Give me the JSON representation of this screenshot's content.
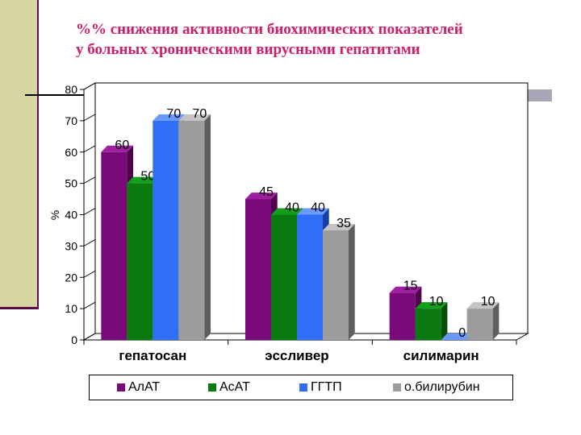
{
  "title_lines": [
    "%% снижения активности биохимических показателей",
    " у больных хроническими вирусными гепатитами"
  ],
  "chart_data": {
    "type": "bar",
    "categories": [
      "гепатосан",
      "эссливер",
      "силимарин"
    ],
    "series": [
      {
        "name": "АлАТ",
        "values": [
          60,
          45,
          15
        ],
        "color": "#7a0a7a",
        "side": "#4d044d",
        "top": "#a01ea0"
      },
      {
        "name": "АсАТ",
        "values": [
          50,
          40,
          10
        ],
        "color": "#087a0f",
        "side": "#044d07",
        "top": "#12a01c"
      },
      {
        "name": "ГГТП",
        "values": [
          70,
          40,
          0
        ],
        "color": "#2f6ff5",
        "side": "#1740a6",
        "top": "#6a9aff"
      },
      {
        "name": "о.билирубин",
        "values": [
          70,
          35,
          10
        ],
        "color": "#9c9c9c",
        "side": "#5e5e5e",
        "top": "#c4c4c4"
      }
    ],
    "ylabel": "%",
    "ylim": [
      0,
      80
    ],
    "yticks": [
      0,
      10,
      20,
      30,
      40,
      50,
      60,
      70,
      80
    ],
    "data_labels": [
      [
        "60",
        "45",
        "15"
      ],
      [
        "50",
        "40",
        "10"
      ],
      [
        "70",
        "40",
        "0"
      ],
      [
        "70",
        "35",
        "10"
      ]
    ],
    "grid": false,
    "legend_position": "bottom",
    "bar_style": "3d"
  }
}
